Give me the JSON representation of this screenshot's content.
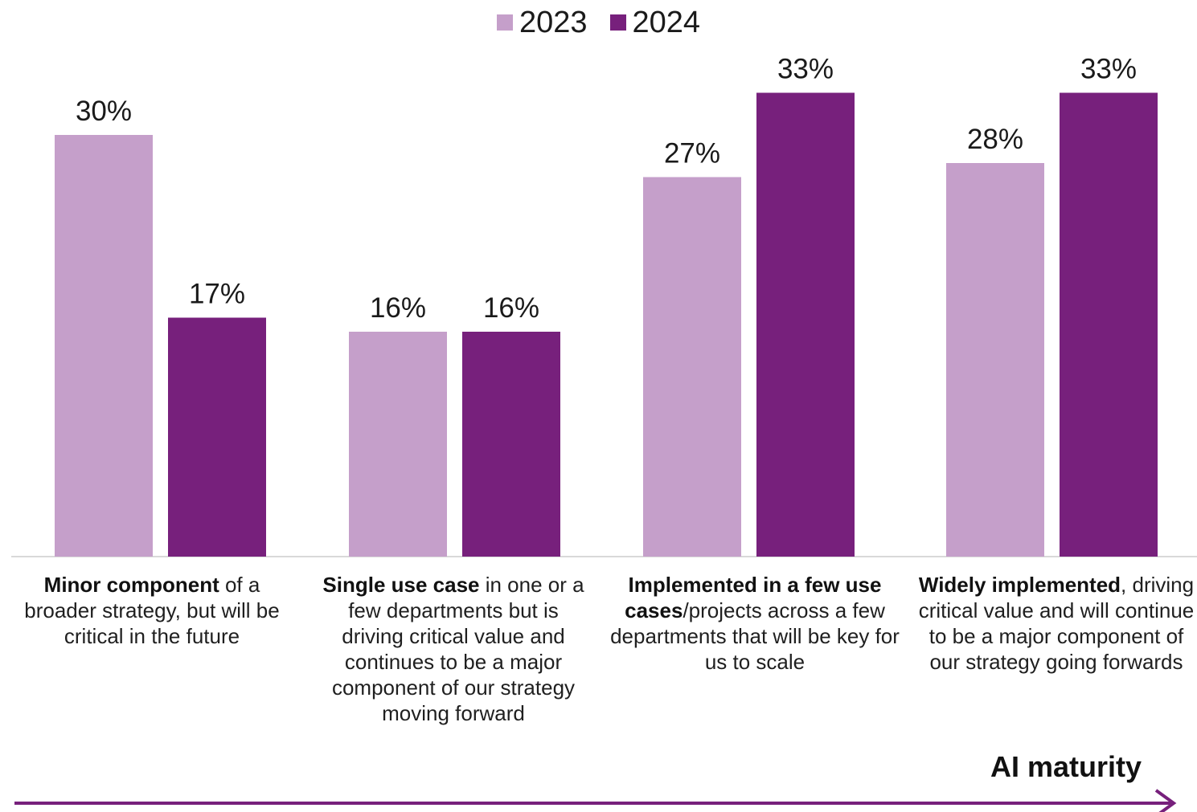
{
  "colors": {
    "series_2023": "#c59fca",
    "series_2024": "#77207c",
    "arrow": "#77207c",
    "baseline": "#d9d9d9"
  },
  "legend": [
    {
      "label": "2023",
      "color_key": "series_2023"
    },
    {
      "label": "2024",
      "color_key": "series_2024"
    }
  ],
  "axis_title": "AI maturity",
  "categories": [
    {
      "bold": "Minor component",
      "rest": " of a broader strategy, but will be critical in the future"
    },
    {
      "bold": "Single use case",
      "rest": " in one or a few departments but is driving critical value and continues to be a major component of our strategy moving forward"
    },
    {
      "bold": "Implemented in a few use cases",
      "rest": "/projects across a few departments that will be key for us to scale"
    },
    {
      "bold": "Widely implemented",
      "rest": ", driving critical  value and will continue to be a major component of our strategy going forwards"
    }
  ],
  "chart_data": {
    "type": "bar",
    "categories": [
      "Minor component of a broader strategy, but will be critical in the future",
      "Single use case in one or a few departments but is driving critical value and continues to be a major component of our strategy moving forward",
      "Implemented in a few use cases/projects across a few departments that will be key for us to scale",
      "Widely implemented, driving critical  value and will continue to be a major component of our strategy going forwards"
    ],
    "series": [
      {
        "name": "2023",
        "values": [
          30,
          16,
          27,
          28
        ],
        "labels": [
          "30%",
          "16%",
          "27%",
          "28%"
        ]
      },
      {
        "name": "2024",
        "values": [
          17,
          16,
          33,
          33
        ],
        "labels": [
          "17%",
          "16%",
          "33%",
          "33%"
        ]
      }
    ],
    "title": "",
    "xlabel": "AI maturity",
    "ylabel": "",
    "ylim": [
      0,
      33.5
    ],
    "grid": false,
    "legend_position": "top-center"
  }
}
